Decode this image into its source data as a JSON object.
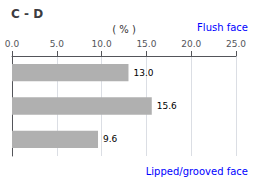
{
  "chart_data": {
    "type": "bar",
    "orientation": "horizontal",
    "title": "C - D",
    "xlabel": "( % )",
    "categories": [
      null,
      null,
      null
    ],
    "values": [
      13.0,
      15.6,
      9.6
    ],
    "value_labels": [
      "13.0",
      "15.6",
      "9.6"
    ],
    "data_labels": true,
    "color": "#b0b0b0",
    "xlim": [
      0,
      25.0
    ],
    "xticks": [
      {
        "value": 0.0,
        "label": "0.0"
      },
      {
        "value": 5.0,
        "label": "5.0"
      },
      {
        "value": 10.0,
        "label": "10.0"
      },
      {
        "value": 15.0,
        "label": "15.0"
      },
      {
        "value": 20.0,
        "label": "20.0"
      },
      {
        "value": 25.0,
        "label": "25.0"
      }
    ],
    "grid": true,
    "tick_labels": "x",
    "annotations": [
      {
        "text": "Flush face",
        "color": "blue"
      },
      {
        "text": "Lipped/grooved face",
        "color": "blue"
      }
    ]
  }
}
